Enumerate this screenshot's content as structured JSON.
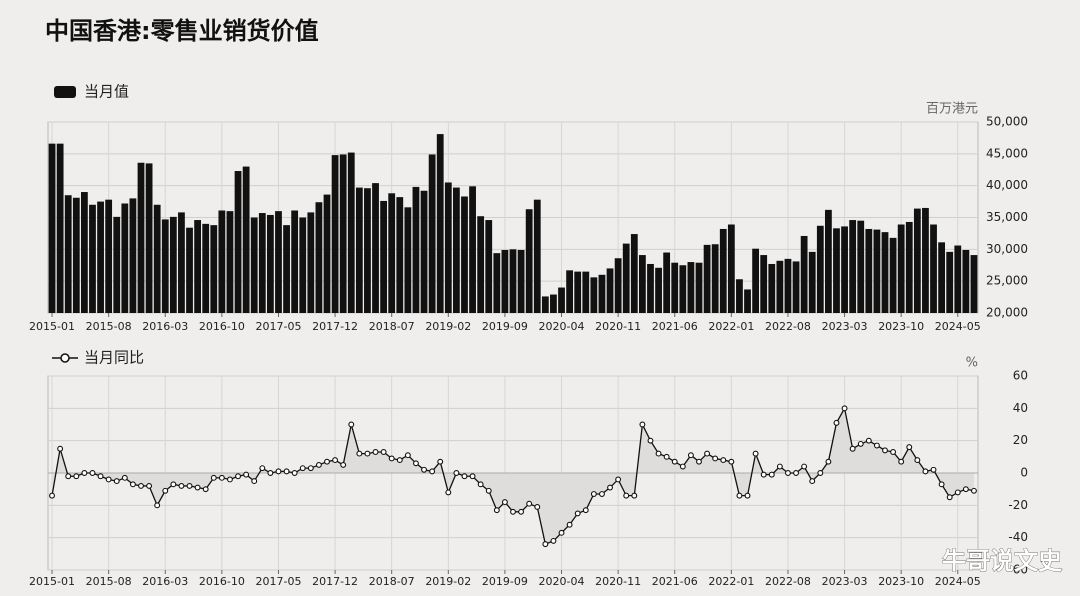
{
  "title": "中国香港:零售业销货价值",
  "watermark": "牛哥说文史",
  "chart_data": [
    {
      "type": "bar",
      "ylabel": "百万港元",
      "grid": true,
      "axis_side": "right",
      "categories": [
        "2015-01",
        null,
        null,
        null,
        null,
        null,
        null,
        "2015-08",
        null,
        null,
        null,
        null,
        null,
        null,
        "2016-03",
        null,
        null,
        null,
        null,
        null,
        null,
        "2016-10",
        null,
        null,
        null,
        null,
        null,
        null,
        "2017-05",
        null,
        null,
        null,
        null,
        null,
        null,
        "2017-12",
        null,
        null,
        null,
        null,
        null,
        null,
        "2018-07",
        null,
        null,
        null,
        null,
        null,
        null,
        "2019-02",
        null,
        null,
        null,
        null,
        null,
        null,
        "2019-09",
        null,
        null,
        null,
        null,
        null,
        null,
        "2020-04",
        null,
        null,
        null,
        null,
        null,
        null,
        "2020-11",
        null,
        null,
        null,
        null,
        null,
        null,
        "2021-06",
        null,
        null,
        null,
        null,
        null,
        null,
        "2022-01",
        null,
        null,
        null,
        null,
        null,
        null,
        "2022-08",
        null,
        null,
        null,
        null,
        null,
        null,
        "2023-03",
        null,
        null,
        null,
        null,
        null,
        null,
        "2023-10",
        null,
        null,
        null,
        null,
        null,
        null,
        "2024-05",
        null,
        null
      ],
      "series": [
        {
          "name": "当月值",
          "color": "#111111",
          "values": [
            46600,
            46600,
            38500,
            38100,
            39000,
            37000,
            37500,
            37800,
            35100,
            37200,
            38000,
            43600,
            43500,
            37000,
            34700,
            35100,
            35800,
            33400,
            34600,
            34000,
            33800,
            36100,
            36000,
            42300,
            43000,
            35000,
            35700,
            35400,
            36000,
            33800,
            36100,
            35000,
            35800,
            37400,
            38600,
            44800,
            44900,
            45200,
            39700,
            39600,
            40400,
            37600,
            38800,
            38200,
            36600,
            39800,
            39200,
            44900,
            48100,
            40500,
            39700,
            38300,
            39900,
            35200,
            34600,
            29400,
            29900,
            30000,
            29900,
            36300,
            37800,
            22600,
            22900,
            24000,
            26700,
            26500,
            26500,
            25600,
            26000,
            27000,
            28600,
            30900,
            32400,
            29100,
            27700,
            27100,
            29500,
            27900,
            27500,
            28000,
            27900,
            30700,
            30800,
            33200,
            33900,
            25300,
            23700,
            30100,
            29100,
            27700,
            28200,
            28500,
            28100,
            32100,
            29600,
            33700,
            36200,
            33300,
            33600,
            34600,
            34500,
            33200,
            33100,
            32700,
            31800,
            33900,
            34300,
            36400,
            36500,
            33900,
            31100,
            29600,
            30600,
            29900,
            29100
          ]
        }
      ],
      "ylim": [
        20000,
        50000
      ],
      "yticks": [
        {
          "value": 20000,
          "label": "20,000"
        },
        {
          "value": 25000,
          "label": "25,000"
        },
        {
          "value": 30000,
          "label": "30,000"
        },
        {
          "value": 35000,
          "label": "35,000"
        },
        {
          "value": 40000,
          "label": "40,000"
        },
        {
          "value": 45000,
          "label": "45,000"
        },
        {
          "value": 50000,
          "label": "50,000"
        }
      ]
    },
    {
      "type": "line",
      "ylabel": "%",
      "grid": true,
      "axis_side": "right",
      "marker": "hollow-circle",
      "area_fill": "#dedddb",
      "categories": [
        "2015-01",
        null,
        null,
        null,
        null,
        null,
        null,
        "2015-08",
        null,
        null,
        null,
        null,
        null,
        null,
        "2016-03",
        null,
        null,
        null,
        null,
        null,
        null,
        "2016-10",
        null,
        null,
        null,
        null,
        null,
        null,
        "2017-05",
        null,
        null,
        null,
        null,
        null,
        null,
        "2017-12",
        null,
        null,
        null,
        null,
        null,
        null,
        "2018-07",
        null,
        null,
        null,
        null,
        null,
        null,
        "2019-02",
        null,
        null,
        null,
        null,
        null,
        null,
        "2019-09",
        null,
        null,
        null,
        null,
        null,
        null,
        "2020-04",
        null,
        null,
        null,
        null,
        null,
        null,
        "2020-11",
        null,
        null,
        null,
        null,
        null,
        null,
        "2021-06",
        null,
        null,
        null,
        null,
        null,
        null,
        "2022-01",
        null,
        null,
        null,
        null,
        null,
        null,
        "2022-08",
        null,
        null,
        null,
        null,
        null,
        null,
        "2023-03",
        null,
        null,
        null,
        null,
        null,
        null,
        "2023-10",
        null,
        null,
        null,
        null,
        null,
        null,
        "2024-05",
        null,
        null
      ],
      "series": [
        {
          "name": "当月同比",
          "color": "#111111",
          "values": [
            -14,
            15,
            -2,
            -2,
            0,
            0,
            -2,
            -4,
            -5,
            -3,
            -7,
            -8,
            -8,
            -20,
            -11,
            -7,
            -8,
            -8,
            -9,
            -10,
            -3,
            -3,
            -4,
            -2,
            -1,
            -5,
            3,
            0,
            1,
            1,
            0,
            3,
            3,
            5,
            7,
            8,
            5,
            30,
            12,
            12,
            13,
            13,
            9,
            8,
            11,
            6,
            2,
            1,
            7,
            -12,
            0,
            -2,
            -2,
            -7,
            -11,
            -23,
            -18,
            -24,
            -24,
            -19,
            -21,
            -44,
            -42,
            -37,
            -32,
            -25,
            -23,
            -13,
            -13,
            -9,
            -4,
            -14,
            -14,
            30,
            20,
            12,
            10,
            7,
            4,
            11,
            7,
            12,
            9,
            8,
            7,
            -14,
            -14,
            12,
            -1,
            -1,
            4,
            0,
            0,
            4,
            -5,
            0,
            7,
            31,
            40,
            15,
            18,
            20,
            17,
            14,
            13,
            7,
            16,
            8,
            1,
            2,
            -7,
            -15,
            -12,
            -10,
            -11
          ]
        }
      ],
      "ylim": [
        -60,
        60
      ],
      "yticks": [
        -60,
        -40,
        -20,
        0,
        20,
        40,
        60
      ]
    }
  ]
}
